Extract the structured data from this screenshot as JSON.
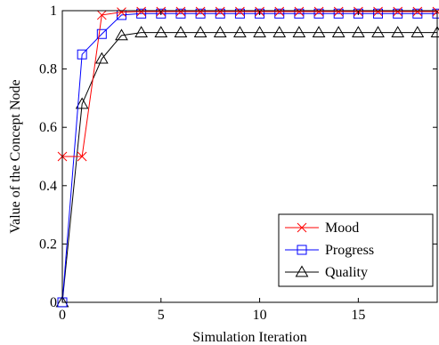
{
  "chart_data": {
    "type": "line",
    "title": "",
    "xlabel": "Simulation Iteration",
    "ylabel": "Value of the Concept Node",
    "xlim": [
      0,
      19
    ],
    "ylim": [
      0,
      1
    ],
    "x_ticks": [
      0,
      5,
      10,
      15
    ],
    "y_ticks": [
      0,
      0.2,
      0.4,
      0.6,
      0.8,
      1
    ],
    "x_tick_labels": [
      "0",
      "5",
      "10",
      "15"
    ],
    "y_tick_labels": [
      "0",
      "0.2",
      "0.4",
      "0.6",
      "0.8",
      "1"
    ],
    "grid": false,
    "legend_position": "bottom-right",
    "x": [
      0,
      1,
      2,
      3,
      4,
      5,
      6,
      7,
      8,
      9,
      10,
      11,
      12,
      13,
      14,
      15,
      16,
      17,
      18,
      19
    ],
    "series": [
      {
        "name": "Mood",
        "color": "#ff0000",
        "marker": "x",
        "values": [
          0.5,
          0.5,
          0.985,
          0.995,
          0.997,
          0.997,
          0.997,
          0.997,
          0.997,
          0.997,
          0.997,
          0.997,
          0.997,
          0.997,
          0.997,
          0.997,
          0.997,
          0.997,
          0.997,
          0.997
        ]
      },
      {
        "name": "Progress",
        "color": "#0000ff",
        "marker": "square",
        "values": [
          0,
          0.85,
          0.92,
          0.985,
          0.99,
          0.99,
          0.99,
          0.99,
          0.99,
          0.99,
          0.99,
          0.99,
          0.99,
          0.99,
          0.99,
          0.99,
          0.99,
          0.99,
          0.99,
          0.99
        ]
      },
      {
        "name": "Quality",
        "color": "#000000",
        "marker": "triangle",
        "values": [
          0,
          0.68,
          0.835,
          0.915,
          0.925,
          0.925,
          0.925,
          0.925,
          0.925,
          0.925,
          0.925,
          0.925,
          0.925,
          0.925,
          0.925,
          0.925,
          0.925,
          0.925,
          0.925,
          0.925
        ]
      }
    ]
  }
}
